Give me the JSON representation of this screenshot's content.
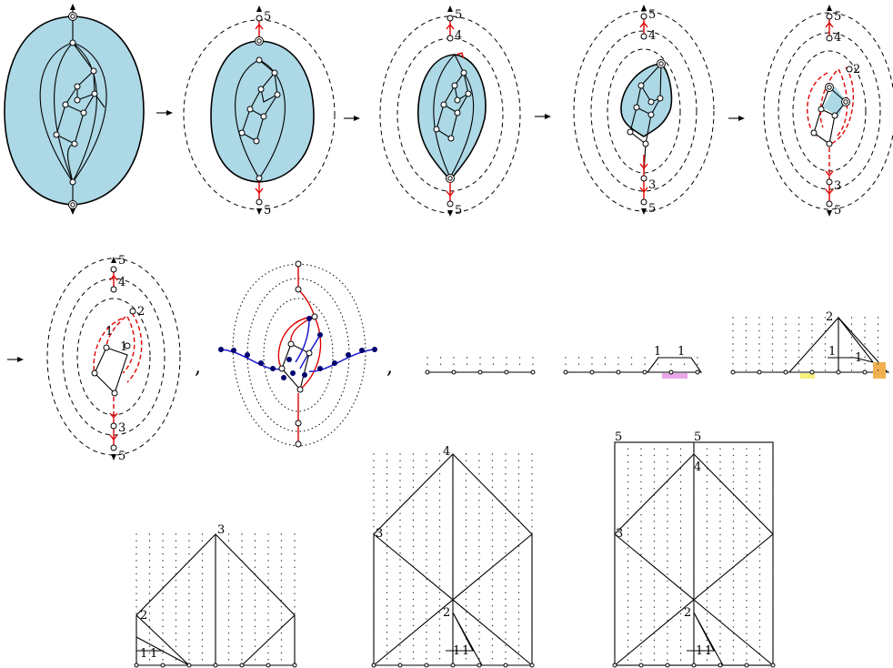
{
  "panels": {
    "p1": {
      "labels": []
    },
    "p2": {
      "labels": [
        "5",
        "5"
      ]
    },
    "p3": {
      "labels": [
        "5",
        "4",
        "5"
      ]
    },
    "p4": {
      "labels": [
        "5",
        "4",
        "3",
        "5"
      ]
    },
    "p5": {
      "labels": [
        "5",
        "4",
        "2",
        "3",
        "5"
      ]
    },
    "p6": {
      "labels": [
        "5",
        "4",
        "2",
        "1",
        "1",
        "3",
        "5"
      ]
    },
    "strip1": {
      "labels": []
    },
    "strip2": {
      "labels": [
        "1",
        "1"
      ]
    },
    "strip3": {
      "labels": [
        "2",
        "1",
        "1"
      ]
    },
    "square3": {
      "labels": [
        "3",
        "2",
        "1",
        "1"
      ]
    },
    "square4": {
      "labels": [
        "4",
        "3",
        "2",
        "1",
        "1"
      ]
    },
    "square5": {
      "labels": [
        "5",
        "5",
        "4",
        "3",
        "2",
        "1",
        "1"
      ]
    }
  },
  "separators": [
    ",",
    ","
  ],
  "colors": {
    "region": "#add8e6",
    "red_edges": "#e00000",
    "blue_edges": "#1a1ad0",
    "highlight_pink": "#e8a6e8",
    "highlight_yellow": "#f5f07a",
    "highlight_orange": "#f0b050"
  }
}
